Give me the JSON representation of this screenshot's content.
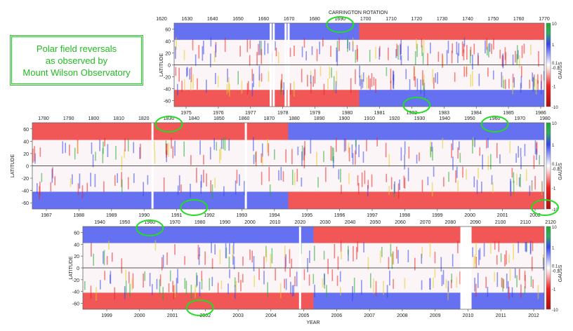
{
  "caption": {
    "lines": [
      "Polar field reversals",
      "as observed by",
      "Mount  Wilson Observatory"
    ]
  },
  "chart_data": [
    {
      "type": "heatmap",
      "title": "CARRINGTON ROTATION",
      "ylabel": "LATITUDE",
      "colorbar_label": "GAUSS",
      "colorbar_ticks": [
        "10",
        "1",
        "0.1",
        "-0.1",
        "-1",
        "-10"
      ],
      "ylim": [
        -70,
        70
      ],
      "yticks": [
        60,
        40,
        20,
        0,
        -20,
        -40,
        -60
      ],
      "top_axis_ticks": [
        "1620",
        "1630",
        "1640",
        "1650",
        "1660",
        "1670",
        "1680",
        "1690",
        "1700",
        "1710",
        "1720",
        "1730",
        "1740",
        "1750",
        "1760",
        "1770"
      ],
      "bottom_axis_ticks": [
        "1975",
        "1976",
        "1977",
        "1978",
        "1979",
        "1980",
        "1981",
        "1982",
        "1983",
        "1984",
        "1985",
        "1986"
      ],
      "year_range": [
        1974.5,
        1986.9
      ],
      "north_polar_sign": [
        "positive",
        "negative"
      ],
      "south_polar_sign": [
        "negative",
        "positive"
      ],
      "data_gaps_years": [
        1977.7,
        1977.8,
        1978.2,
        1978.3
      ],
      "highlighted_reversals": [
        {
          "rotation": 1693,
          "hemisphere": "north"
        },
        {
          "rotation": 1715,
          "hemisphere": "south"
        }
      ]
    },
    {
      "type": "heatmap",
      "ylabel": "LATITUDE",
      "colorbar_label": "GAUSS",
      "colorbar_ticks": [
        "10",
        "1",
        "0.1",
        "-0.1",
        "-1",
        "-10"
      ],
      "ylim": [
        -70,
        70
      ],
      "yticks": [
        60,
        40,
        20,
        0,
        -20,
        -40,
        -60
      ],
      "top_axis_ticks": [
        "1780",
        "1790",
        "1800",
        "1810",
        "1820",
        "1830",
        "1840",
        "1850",
        "1860",
        "1870",
        "1880",
        "1890",
        "1900",
        "1910",
        "1920",
        "1930",
        "1940",
        "1950",
        "1960",
        "1970",
        "1980"
      ],
      "bottom_axis_ticks": [
        "1987",
        "1988",
        "1989",
        "1990",
        "1991",
        "1992",
        "1993",
        "1994",
        "1995",
        "1996",
        "1997",
        "1998",
        "1999",
        "2000",
        "2001",
        "2002"
      ],
      "year_range": [
        1986.4,
        2002.3
      ],
      "north_polar_sign": [
        "negative",
        "positive"
      ],
      "south_polar_sign": [
        "positive",
        "negative"
      ],
      "data_gaps_years": [
        1990.1,
        1993.0
      ],
      "highlighted_reversals": [
        {
          "rotation": 1830,
          "hemisphere": "north"
        },
        {
          "rotation": 1840,
          "hemisphere": "south"
        },
        {
          "rotation": 1960,
          "hemisphere": "north"
        },
        {
          "rotation": 1980,
          "hemisphere": "south"
        }
      ]
    },
    {
      "type": "heatmap",
      "ylabel": "LATITUDE",
      "xlabel": "YEAR",
      "colorbar_label": "GAUSS",
      "colorbar_ticks": [
        "10",
        "1",
        "0.1",
        "-0.1",
        "-1",
        "-10"
      ],
      "ylim": [
        -70,
        70
      ],
      "yticks": [
        60,
        40,
        20,
        0,
        -20,
        -40,
        -60
      ],
      "top_axis_ticks": [
        "1940",
        "1950",
        "1960",
        "1970",
        "1980",
        "1990",
        "2000",
        "2010",
        "2020",
        "2030",
        "2040",
        "2050",
        "2060",
        "2070",
        "2080",
        "2090",
        "2100",
        "2110",
        "2120"
      ],
      "bottom_axis_ticks": [
        "1999",
        "2000",
        "2001",
        "2002",
        "2003",
        "2004",
        "2005",
        "2006",
        "2007",
        "2008",
        "2009",
        "2010",
        "2011",
        "2012"
      ],
      "year_range": [
        1998.3,
        2012.6
      ],
      "north_polar_sign": [
        "positive",
        "negative"
      ],
      "south_polar_sign": [
        "negative",
        "positive"
      ],
      "data_gaps_years": [
        2005.0,
        2010.0
      ],
      "highlighted_reversals": [
        {
          "rotation": 1960,
          "hemisphere": "north"
        },
        {
          "rotation": 1980,
          "hemisphere": "south"
        }
      ]
    }
  ],
  "colors": {
    "positive": "#3344ee",
    "negative": "#ee2222",
    "neutral": "#ffffff",
    "strong_positive": "#22aa33",
    "strong_negative": "#aa1111",
    "highlight": "#22dd22",
    "caption": "#22bb22"
  }
}
